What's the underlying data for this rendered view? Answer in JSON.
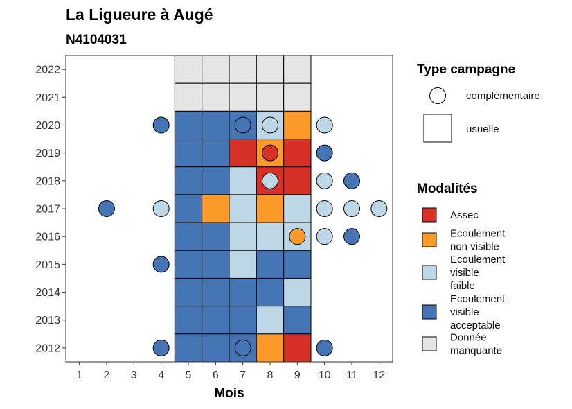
{
  "chart_data": {
    "type": "heatmap",
    "title": "La Ligueure à Augé",
    "subtitle": "N4104031",
    "xlabel": "Mois",
    "ylabel": "",
    "x_ticks": [
      1,
      2,
      3,
      4,
      5,
      6,
      7,
      8,
      9,
      10,
      11,
      12
    ],
    "y_ticks": [
      2012,
      2013,
      2014,
      2015,
      2016,
      2017,
      2018,
      2019,
      2020,
      2021,
      2022
    ],
    "grid": false,
    "legend_placement": "right",
    "colors": {
      "Assec": "#d73027",
      "Ecoulement non visible": "#fc9a2a",
      "Ecoulement visible faible": "#bdd7e7",
      "Ecoulement visible acceptable": "#4575b4",
      "Donnée manquante": "#e5e5e5"
    },
    "campaign_legend": {
      "title": "Type campagne",
      "items": [
        {
          "label": "complémentaire",
          "shape": "circle"
        },
        {
          "label": "usuelle",
          "shape": "square"
        }
      ]
    },
    "modality_legend": {
      "title": "Modalités",
      "items": [
        {
          "key": "Assec",
          "lines": [
            "Assec"
          ]
        },
        {
          "key": "Ecoulement non visible",
          "lines": [
            "Ecoulement",
            "non visible"
          ]
        },
        {
          "key": "Ecoulement visible faible",
          "lines": [
            "Ecoulement",
            "visible",
            "faible"
          ]
        },
        {
          "key": "Ecoulement visible acceptable",
          "lines": [
            "Ecoulement",
            "visible",
            "acceptable"
          ]
        },
        {
          "key": "Donnée manquante",
          "lines": [
            "Donnée",
            "manquante"
          ]
        }
      ]
    },
    "usuelle": [
      {
        "year": 2022,
        "month": 5,
        "value": "Donnée manquante"
      },
      {
        "year": 2022,
        "month": 6,
        "value": "Donnée manquante"
      },
      {
        "year": 2022,
        "month": 7,
        "value": "Donnée manquante"
      },
      {
        "year": 2022,
        "month": 8,
        "value": "Donnée manquante"
      },
      {
        "year": 2022,
        "month": 9,
        "value": "Donnée manquante"
      },
      {
        "year": 2021,
        "month": 5,
        "value": "Donnée manquante"
      },
      {
        "year": 2021,
        "month": 6,
        "value": "Donnée manquante"
      },
      {
        "year": 2021,
        "month": 7,
        "value": "Donnée manquante"
      },
      {
        "year": 2021,
        "month": 8,
        "value": "Donnée manquante"
      },
      {
        "year": 2021,
        "month": 9,
        "value": "Donnée manquante"
      },
      {
        "year": 2020,
        "month": 5,
        "value": "Ecoulement visible acceptable"
      },
      {
        "year": 2020,
        "month": 6,
        "value": "Ecoulement visible acceptable"
      },
      {
        "year": 2020,
        "month": 7,
        "value": "Ecoulement visible acceptable"
      },
      {
        "year": 2020,
        "month": 8,
        "value": "Ecoulement visible faible"
      },
      {
        "year": 2020,
        "month": 9,
        "value": "Ecoulement non visible"
      },
      {
        "year": 2019,
        "month": 5,
        "value": "Ecoulement visible acceptable"
      },
      {
        "year": 2019,
        "month": 6,
        "value": "Ecoulement visible acceptable"
      },
      {
        "year": 2019,
        "month": 7,
        "value": "Assec"
      },
      {
        "year": 2019,
        "month": 8,
        "value": "Ecoulement non visible"
      },
      {
        "year": 2019,
        "month": 9,
        "value": "Assec"
      },
      {
        "year": 2018,
        "month": 5,
        "value": "Ecoulement visible acceptable"
      },
      {
        "year": 2018,
        "month": 6,
        "value": "Ecoulement visible acceptable"
      },
      {
        "year": 2018,
        "month": 7,
        "value": "Ecoulement visible faible"
      },
      {
        "year": 2018,
        "month": 8,
        "value": "Assec"
      },
      {
        "year": 2018,
        "month": 9,
        "value": "Assec"
      },
      {
        "year": 2017,
        "month": 5,
        "value": "Ecoulement visible acceptable"
      },
      {
        "year": 2017,
        "month": 6,
        "value": "Ecoulement non visible"
      },
      {
        "year": 2017,
        "month": 7,
        "value": "Ecoulement visible faible"
      },
      {
        "year": 2017,
        "month": 8,
        "value": "Ecoulement non visible"
      },
      {
        "year": 2017,
        "month": 9,
        "value": "Ecoulement visible faible"
      },
      {
        "year": 2016,
        "month": 5,
        "value": "Ecoulement visible acceptable"
      },
      {
        "year": 2016,
        "month": 6,
        "value": "Ecoulement visible acceptable"
      },
      {
        "year": 2016,
        "month": 7,
        "value": "Ecoulement visible faible"
      },
      {
        "year": 2016,
        "month": 8,
        "value": "Ecoulement visible faible"
      },
      {
        "year": 2016,
        "month": 9,
        "value": "Ecoulement visible faible"
      },
      {
        "year": 2015,
        "month": 5,
        "value": "Ecoulement visible acceptable"
      },
      {
        "year": 2015,
        "month": 6,
        "value": "Ecoulement visible acceptable"
      },
      {
        "year": 2015,
        "month": 7,
        "value": "Ecoulement visible faible"
      },
      {
        "year": 2015,
        "month": 8,
        "value": "Ecoulement visible acceptable"
      },
      {
        "year": 2015,
        "month": 9,
        "value": "Ecoulement visible acceptable"
      },
      {
        "year": 2014,
        "month": 5,
        "value": "Ecoulement visible acceptable"
      },
      {
        "year": 2014,
        "month": 6,
        "value": "Ecoulement visible acceptable"
      },
      {
        "year": 2014,
        "month": 7,
        "value": "Ecoulement visible acceptable"
      },
      {
        "year": 2014,
        "month": 8,
        "value": "Ecoulement visible acceptable"
      },
      {
        "year": 2014,
        "month": 9,
        "value": "Ecoulement visible faible"
      },
      {
        "year": 2013,
        "month": 5,
        "value": "Ecoulement visible acceptable"
      },
      {
        "year": 2013,
        "month": 6,
        "value": "Ecoulement visible acceptable"
      },
      {
        "year": 2013,
        "month": 7,
        "value": "Ecoulement visible acceptable"
      },
      {
        "year": 2013,
        "month": 8,
        "value": "Ecoulement visible faible"
      },
      {
        "year": 2013,
        "month": 9,
        "value": "Ecoulement visible acceptable"
      },
      {
        "year": 2012,
        "month": 5,
        "value": "Ecoulement visible acceptable"
      },
      {
        "year": 2012,
        "month": 6,
        "value": "Ecoulement visible acceptable"
      },
      {
        "year": 2012,
        "month": 7,
        "value": "Ecoulement visible acceptable"
      },
      {
        "year": 2012,
        "month": 8,
        "value": "Ecoulement non visible"
      },
      {
        "year": 2012,
        "month": 9,
        "value": "Assec"
      }
    ],
    "complementaire": [
      {
        "year": 2020,
        "month": 4,
        "value": "Ecoulement visible acceptable"
      },
      {
        "year": 2020,
        "month": 7,
        "value": "Ecoulement visible acceptable"
      },
      {
        "year": 2020,
        "month": 8,
        "value": "Ecoulement visible faible"
      },
      {
        "year": 2020,
        "month": 10,
        "value": "Ecoulement visible faible"
      },
      {
        "year": 2019,
        "month": 8,
        "value": "Assec"
      },
      {
        "year": 2019,
        "month": 10,
        "value": "Ecoulement visible acceptable"
      },
      {
        "year": 2018,
        "month": 8,
        "value": "Ecoulement visible faible"
      },
      {
        "year": 2018,
        "month": 10,
        "value": "Ecoulement visible faible"
      },
      {
        "year": 2018,
        "month": 11,
        "value": "Ecoulement visible acceptable"
      },
      {
        "year": 2017,
        "month": 2,
        "value": "Ecoulement visible acceptable"
      },
      {
        "year": 2017,
        "month": 4,
        "value": "Ecoulement visible faible"
      },
      {
        "year": 2017,
        "month": 10,
        "value": "Ecoulement visible faible"
      },
      {
        "year": 2017,
        "month": 11,
        "value": "Ecoulement visible faible"
      },
      {
        "year": 2017,
        "month": 12,
        "value": "Ecoulement visible faible"
      },
      {
        "year": 2016,
        "month": 9,
        "value": "Ecoulement non visible"
      },
      {
        "year": 2016,
        "month": 10,
        "value": "Ecoulement visible faible"
      },
      {
        "year": 2016,
        "month": 11,
        "value": "Ecoulement visible acceptable"
      },
      {
        "year": 2015,
        "month": 4,
        "value": "Ecoulement visible acceptable"
      },
      {
        "year": 2012,
        "month": 4,
        "value": "Ecoulement visible acceptable"
      },
      {
        "year": 2012,
        "month": 7,
        "value": "Ecoulement visible acceptable"
      },
      {
        "year": 2012,
        "month": 10,
        "value": "Ecoulement visible acceptable"
      }
    ]
  }
}
